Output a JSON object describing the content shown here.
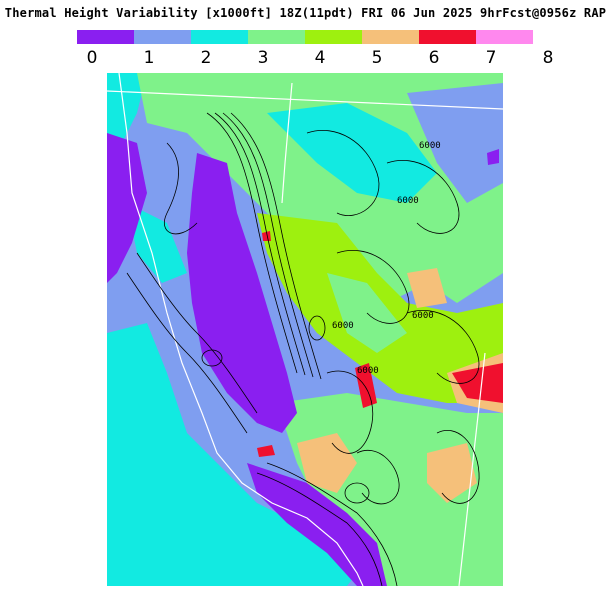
{
  "title": "Thermal Height Variability [x1000ft] 18Z(11pdt) FRI 06 Jun 2025 9hrFcst@0956z RAP",
  "legend": {
    "labels": [
      "0",
      "1",
      "2",
      "3",
      "4",
      "5",
      "6",
      "7",
      "8"
    ],
    "colors": [
      "#8a1ff0",
      "#7f9ef0",
      "#12eae1",
      "#7ff28a",
      "#9ef00f",
      "#f5c07a",
      "#f0102e",
      "#ff88ee"
    ]
  },
  "map": {
    "contour_labels": [
      "6000",
      "6000",
      "6000",
      "6000",
      "6000"
    ],
    "colors": {
      "ocean_land_low": "#7f9ef0",
      "deep_purple": "#8a1ff0",
      "cyan": "#12eae1",
      "light_green": "#7ff28a",
      "yellow_green": "#9ef00f",
      "tan": "#f5c07a",
      "red": "#f0102e",
      "boundary": "#ffffff",
      "contour": "#000000"
    }
  }
}
